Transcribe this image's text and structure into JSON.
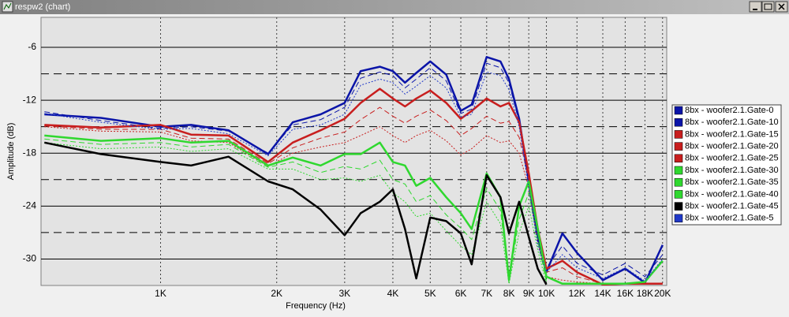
{
  "window": {
    "title": "respw2 (chart)"
  },
  "chart_data": {
    "type": "line",
    "x_label": "Frequency (Hz)",
    "y_label": "Amplitude (dB)",
    "xscale": "log",
    "xlim": [
      490,
      20500
    ],
    "ylim": [
      -33,
      -2.6
    ],
    "xticks": [
      {
        "value": 1000,
        "label": "1K"
      },
      {
        "value": 2000,
        "label": "2K"
      },
      {
        "value": 3000,
        "label": "3K"
      },
      {
        "value": 4000,
        "label": "4K"
      },
      {
        "value": 5000,
        "label": "5K"
      },
      {
        "value": 6000,
        "label": "6K"
      },
      {
        "value": 7000,
        "label": "7K"
      },
      {
        "value": 8000,
        "label": "8K"
      },
      {
        "value": 9000,
        "label": "9K"
      },
      {
        "value": 10000,
        "label": "10K"
      },
      {
        "value": 12000,
        "label": "12K"
      },
      {
        "value": 14000,
        "label": "14K"
      },
      {
        "value": 16000,
        "label": "16K"
      },
      {
        "value": 18000,
        "label": "18K"
      },
      {
        "value": 20000,
        "label": "20K"
      }
    ],
    "yticks": [
      -6,
      -12,
      -18,
      -24,
      -30
    ],
    "yticks_minor": [
      -9,
      -15,
      -21,
      -27
    ],
    "grid": true,
    "legend": "right",
    "x": [
      500,
      700,
      1000,
      1200,
      1500,
      1900,
      2200,
      2600,
      3000,
      3300,
      3700,
      4000,
      4300,
      4600,
      5000,
      5500,
      6000,
      6400,
      7000,
      7600,
      8000,
      8500,
      9000,
      9500,
      10000,
      11000,
      12000,
      14000,
      16000,
      18000,
      20000
    ],
    "series": [
      {
        "name": "8bx - woofer2.1.Gate-0",
        "color": "#0a14a8",
        "line_style": "solid",
        "values": [
          -13.6,
          -14.0,
          -15.0,
          -14.8,
          -15.4,
          -18.1,
          -14.5,
          -13.6,
          -12.3,
          -8.7,
          -8.2,
          -8.7,
          -10.0,
          -8.9,
          -7.6,
          -9.1,
          -13.2,
          -12.5,
          -7.1,
          -7.6,
          -9.6,
          -14.1,
          -21.2,
          -27.5,
          -31.5,
          -27.1,
          -29.3,
          -32.4,
          -31.1,
          -32.7,
          -28.4
        ]
      },
      {
        "name": "8bx - woofer2.1.Gate-10",
        "color": "#0a14a8",
        "line_style": "dashed",
        "values": [
          -13.3,
          -14.3,
          -15.2,
          -15.0,
          -15.5,
          -18.0,
          -14.8,
          -14.2,
          -12.8,
          -9.5,
          -8.8,
          -9.2,
          -10.6,
          -9.6,
          -8.3,
          -9.8,
          -13.5,
          -13.0,
          -7.8,
          -8.3,
          -10.0,
          -14.5,
          -21.5,
          -28.0,
          -31.0,
          -28.5,
          -30.5,
          -31.8,
          -30.5,
          -32.0,
          -29.5
        ]
      },
      {
        "name": "8bx - woofer2.1.Gate-15",
        "color": "#c81e1e",
        "line_style": "solid",
        "values": [
          -14.8,
          -15.1,
          -14.8,
          -15.9,
          -16.0,
          -19.0,
          -16.8,
          -15.4,
          -14.1,
          -12.3,
          -10.7,
          -11.8,
          -12.7,
          -11.8,
          -10.9,
          -12.3,
          -14.1,
          -13.2,
          -11.8,
          -12.7,
          -12.3,
          -14.5,
          -20.3,
          -26.6,
          -31.1,
          -30.2,
          -31.5,
          -32.9,
          -32.8,
          -32.8,
          -32.8
        ]
      },
      {
        "name": "8bx - woofer2.1.Gate-20",
        "color": "#c81e1e",
        "line_style": "dashed",
        "values": [
          -14.9,
          -15.3,
          -15.3,
          -16.3,
          -16.4,
          -19.2,
          -17.4,
          -16.3,
          -15.6,
          -14.2,
          -12.8,
          -13.8,
          -14.6,
          -13.8,
          -13.1,
          -14.3,
          -16.0,
          -15.2,
          -13.8,
          -14.6,
          -14.4,
          -16.2,
          -21.0,
          -27.0,
          -31.5,
          -31.0,
          -32.0,
          -32.8,
          -32.8,
          -32.8,
          -32.8
        ]
      },
      {
        "name": "8bx - woofer2.1.Gate-25",
        "color": "#c81e1e",
        "line_style": "dotted",
        "values": [
          -15.0,
          -15.5,
          -15.6,
          -16.6,
          -16.8,
          -19.5,
          -18.0,
          -17.3,
          -16.8,
          -16.0,
          -15.0,
          -16.0,
          -16.8,
          -16.0,
          -15.4,
          -16.6,
          -18.2,
          -17.5,
          -16.0,
          -16.8,
          -16.6,
          -18.0,
          -22.0,
          -28.0,
          -32.0,
          -32.4,
          -32.6,
          -32.8,
          -32.8,
          -32.8,
          -32.8
        ]
      },
      {
        "name": "8bx - woofer2.1.Gate-30",
        "color": "#2fd82f",
        "line_style": "solid",
        "values": [
          -16.0,
          -16.6,
          -16.3,
          -16.8,
          -16.6,
          -19.4,
          -18.5,
          -19.4,
          -18.1,
          -18.1,
          -16.8,
          -19.0,
          -19.4,
          -21.7,
          -20.8,
          -23.0,
          -24.8,
          -26.6,
          -20.3,
          -23.0,
          -32.4,
          -24.0,
          -21.2,
          -26.6,
          -32.0,
          -32.8,
          -32.8,
          -32.8,
          -32.8,
          -32.6,
          -30.2
        ]
      },
      {
        "name": "8bx - woofer2.1.Gate-35",
        "color": "#2fd82f",
        "line_style": "dashed",
        "values": [
          -16.4,
          -17.0,
          -16.8,
          -17.3,
          -17.0,
          -19.6,
          -19.0,
          -20.2,
          -19.5,
          -19.8,
          -18.8,
          -21.0,
          -21.5,
          -23.5,
          -22.8,
          -25.0,
          -26.5,
          -27.8,
          -22.0,
          -24.5,
          -32.5,
          -25.5,
          -22.5,
          -28.0,
          -32.5,
          null,
          null,
          null,
          null,
          null,
          null
        ]
      },
      {
        "name": "8bx - woofer2.1.Gate-40",
        "color": "#2fd82f",
        "line_style": "dotted",
        "values": [
          -16.8,
          -17.5,
          -17.3,
          -17.8,
          -17.5,
          -19.8,
          -19.8,
          -21.0,
          -20.8,
          -21.2,
          -20.5,
          -22.5,
          -23.5,
          -25.2,
          -24.8,
          -26.8,
          -28.5,
          -29.5,
          -23.5,
          -26.0,
          -32.8,
          -27.0,
          -24.0,
          -29.0,
          -32.8,
          null,
          null,
          null,
          null,
          null,
          null
        ]
      },
      {
        "name": "8bx - woofer2.1.Gate-45",
        "color": "#000000",
        "line_style": "solid",
        "values": [
          -16.8,
          -18.1,
          -19.0,
          -19.4,
          -18.4,
          -21.2,
          -22.1,
          -24.4,
          -27.3,
          -24.8,
          -23.5,
          -22.1,
          -26.6,
          -32.2,
          -25.3,
          -25.7,
          -27.1,
          -30.6,
          -20.5,
          -23.0,
          -27.1,
          -23.5,
          -27.5,
          -31.1,
          -32.9,
          null,
          null,
          null,
          null,
          null,
          null
        ]
      },
      {
        "name": "8bx - woofer2.1.Gate-5",
        "color": "#2038c8",
        "line_style": "dotted",
        "values": [
          -13.5,
          -14.5,
          -15.3,
          -15.2,
          -15.8,
          -18.3,
          -15.3,
          -14.8,
          -13.6,
          -10.3,
          -9.6,
          -10.0,
          -11.3,
          -10.4,
          -9.2,
          -10.6,
          -13.9,
          -13.6,
          -8.8,
          -9.2,
          -10.8,
          -15.0,
          -22.0,
          -28.5,
          -31.5,
          -29.5,
          -31.0,
          -32.2,
          -31.0,
          -32.5,
          -30.0
        ]
      }
    ]
  }
}
